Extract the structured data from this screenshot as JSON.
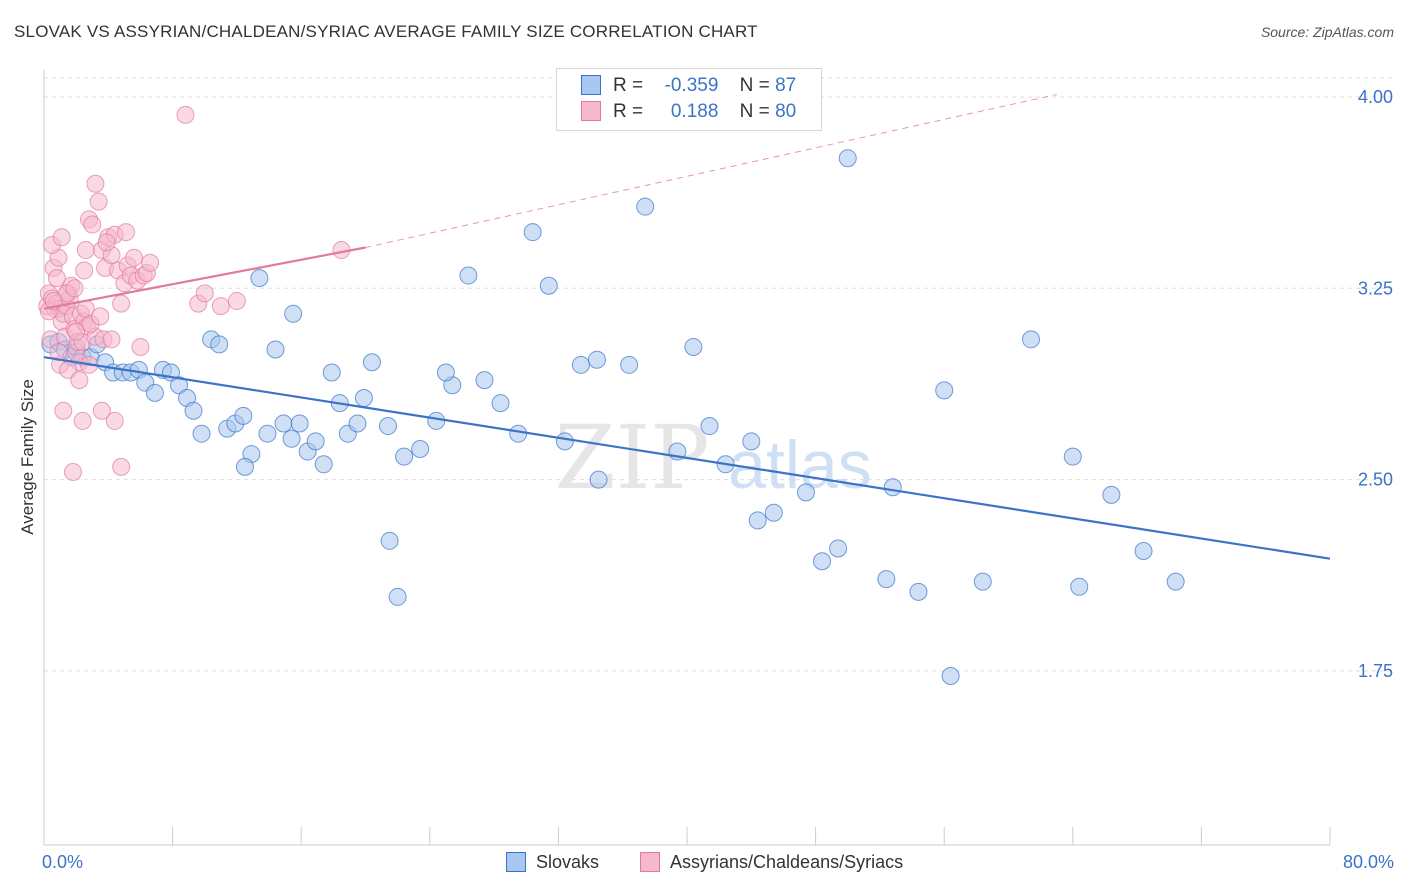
{
  "header": {
    "title": "SLOVAK VS ASSYRIAN/CHALDEAN/SYRIAC AVERAGE FAMILY SIZE CORRELATION CHART",
    "source": "Source: ZipAtlas.com"
  },
  "watermark": {
    "zip": "ZIP",
    "atlas": "atlas"
  },
  "legend": {
    "rows": [
      {
        "r_label": "R =",
        "r_value": "-0.359",
        "n_label": "N =",
        "n_value": "87"
      },
      {
        "r_label": "R =",
        "r_value": "0.188",
        "n_label": "N =",
        "n_value": "80"
      }
    ],
    "bottom": [
      "Slovaks",
      "Assyrians/Chaldeans/Syriacs"
    ]
  },
  "colors": {
    "blue": "#3b73c8",
    "blue_fill": "#a8c6ef",
    "pink": "#e07aa0",
    "pink_fill": "#f6b8cd",
    "grid": "#dddddd",
    "axis_text": "#3b73c8"
  },
  "chart_data": {
    "type": "scatter",
    "title": "SLOVAK VS ASSYRIAN/CHALDEAN/SYRIAC AVERAGE FAMILY SIZE CORRELATION CHART",
    "xlabel": "",
    "ylabel": "Average Family Size",
    "xlim": [
      0,
      80
    ],
    "ylim": [
      1.0,
      4.2
    ],
    "x_tick_labels": [
      "0.0%",
      "80.0%"
    ],
    "y_ticks": [
      1.75,
      2.5,
      3.25,
      4.0
    ],
    "y_tick_labels": [
      "1.75",
      "2.50",
      "3.25",
      "4.00"
    ],
    "grid": "horizontal dashed",
    "legend_position": "top-center",
    "series": [
      {
        "name": "Slovaks",
        "color": "#3b73c8",
        "trend": {
          "x": [
            0.0,
            80.0
          ],
          "y": [
            2.98,
            2.19
          ],
          "style": "solid"
        },
        "points": [
          [
            0.4,
            3.03
          ],
          [
            0.9,
            3.04
          ],
          [
            1.3,
            3.01
          ],
          [
            1.7,
            2.98
          ],
          [
            2.0,
            3.02
          ],
          [
            2.4,
            2.98
          ],
          [
            2.9,
            2.98
          ],
          [
            3.3,
            3.03
          ],
          [
            3.8,
            2.96
          ],
          [
            4.3,
            2.92
          ],
          [
            4.9,
            2.92
          ],
          [
            5.4,
            2.92
          ],
          [
            5.9,
            2.93
          ],
          [
            6.3,
            2.88
          ],
          [
            6.9,
            2.84
          ],
          [
            7.4,
            2.93
          ],
          [
            7.9,
            2.92
          ],
          [
            8.4,
            2.87
          ],
          [
            8.9,
            2.82
          ],
          [
            9.3,
            2.77
          ],
          [
            9.8,
            2.68
          ],
          [
            10.4,
            3.05
          ],
          [
            10.9,
            3.03
          ],
          [
            11.4,
            2.7
          ],
          [
            11.9,
            2.72
          ],
          [
            12.4,
            2.75
          ],
          [
            12.9,
            2.6
          ],
          [
            13.4,
            3.29
          ],
          [
            13.9,
            2.68
          ],
          [
            14.4,
            3.01
          ],
          [
            14.9,
            2.72
          ],
          [
            15.4,
            2.66
          ],
          [
            15.9,
            2.72
          ],
          [
            16.4,
            2.61
          ],
          [
            16.9,
            2.65
          ],
          [
            17.4,
            2.56
          ],
          [
            17.9,
            2.92
          ],
          [
            18.4,
            2.8
          ],
          [
            18.9,
            2.68
          ],
          [
            19.5,
            2.72
          ],
          [
            19.9,
            2.82
          ],
          [
            20.4,
            2.96
          ],
          [
            21.4,
            2.71
          ],
          [
            22.4,
            2.59
          ],
          [
            23.4,
            2.62
          ],
          [
            24.4,
            2.73
          ],
          [
            25.4,
            2.87
          ],
          [
            26.4,
            3.3
          ],
          [
            27.4,
            2.89
          ],
          [
            28.4,
            2.8
          ],
          [
            29.5,
            2.68
          ],
          [
            30.4,
            3.47
          ],
          [
            31.4,
            3.26
          ],
          [
            32.4,
            2.65
          ],
          [
            33.4,
            2.95
          ],
          [
            34.4,
            2.97
          ],
          [
            36.4,
            2.95
          ],
          [
            37.4,
            3.57
          ],
          [
            39.4,
            2.61
          ],
          [
            40.4,
            3.02
          ],
          [
            41.4,
            2.71
          ],
          [
            42.4,
            2.56
          ],
          [
            44.4,
            2.34
          ],
          [
            45.4,
            2.37
          ],
          [
            47.4,
            2.45
          ],
          [
            48.4,
            2.18
          ],
          [
            49.4,
            2.23
          ],
          [
            52.4,
            2.11
          ],
          [
            54.4,
            2.06
          ],
          [
            56.4,
            1.73
          ],
          [
            58.4,
            2.1
          ],
          [
            61.4,
            3.05
          ],
          [
            64.4,
            2.08
          ],
          [
            66.4,
            2.44
          ],
          [
            68.4,
            2.22
          ],
          [
            70.4,
            2.1
          ],
          [
            50.0,
            3.76
          ],
          [
            52.8,
            2.47
          ],
          [
            64.0,
            2.59
          ],
          [
            25.0,
            2.92
          ],
          [
            22.0,
            2.04
          ],
          [
            12.5,
            2.55
          ],
          [
            15.5,
            3.15
          ],
          [
            21.5,
            2.26
          ],
          [
            34.5,
            2.5
          ],
          [
            44.0,
            2.65
          ],
          [
            56.0,
            2.85
          ]
        ]
      },
      {
        "name": "Assyrians/Chaldeans/Syriacs",
        "color": "#e07aa0",
        "trend": {
          "x": [
            0.0,
            20.0
          ],
          "y": [
            3.17,
            3.41
          ],
          "style": "solid"
        },
        "trend_extension": {
          "x": [
            20.0,
            63.0
          ],
          "y": [
            3.41,
            4.01
          ],
          "style": "dashed"
        },
        "points": [
          [
            0.2,
            3.18
          ],
          [
            0.3,
            3.23
          ],
          [
            0.4,
            3.05
          ],
          [
            0.5,
            3.21
          ],
          [
            0.6,
            3.33
          ],
          [
            0.7,
            3.17
          ],
          [
            0.8,
            3.19
          ],
          [
            0.9,
            3.37
          ],
          [
            1.0,
            3.17
          ],
          [
            1.1,
            3.12
          ],
          [
            1.2,
            3.15
          ],
          [
            1.3,
            3.06
          ],
          [
            1.4,
            3.18
          ],
          [
            1.5,
            3.23
          ],
          [
            1.6,
            3.21
          ],
          [
            1.7,
            3.26
          ],
          [
            1.8,
            3.14
          ],
          [
            1.9,
            3.09
          ],
          [
            2.0,
            3.0
          ],
          [
            2.1,
            3.04
          ],
          [
            2.2,
            2.96
          ],
          [
            2.3,
            3.15
          ],
          [
            2.4,
            3.04
          ],
          [
            2.5,
            3.12
          ],
          [
            2.6,
            3.17
          ],
          [
            2.7,
            3.1
          ],
          [
            2.8,
            3.52
          ],
          [
            3.0,
            3.5
          ],
          [
            3.2,
            3.66
          ],
          [
            3.4,
            3.59
          ],
          [
            3.6,
            3.4
          ],
          [
            3.8,
            3.33
          ],
          [
            4.0,
            3.45
          ],
          [
            4.2,
            3.38
          ],
          [
            4.4,
            3.46
          ],
          [
            4.6,
            3.32
          ],
          [
            4.8,
            3.19
          ],
          [
            5.0,
            3.27
          ],
          [
            5.2,
            3.34
          ],
          [
            5.4,
            3.3
          ],
          [
            5.6,
            3.37
          ],
          [
            5.8,
            3.28
          ],
          [
            6.0,
            3.02
          ],
          [
            6.2,
            3.3
          ],
          [
            6.4,
            3.31
          ],
          [
            6.6,
            3.35
          ],
          [
            8.8,
            3.93
          ],
          [
            9.6,
            3.19
          ],
          [
            10.0,
            3.23
          ],
          [
            11.0,
            3.18
          ],
          [
            12.0,
            3.2
          ],
          [
            1.2,
            2.77
          ],
          [
            2.4,
            2.73
          ],
          [
            3.6,
            2.77
          ],
          [
            4.4,
            2.73
          ],
          [
            1.8,
            2.53
          ],
          [
            4.8,
            2.55
          ],
          [
            1.0,
            2.95
          ],
          [
            1.5,
            2.93
          ],
          [
            2.2,
            2.89
          ],
          [
            2.8,
            2.95
          ],
          [
            3.2,
            3.06
          ],
          [
            3.7,
            3.05
          ],
          [
            4.2,
            3.05
          ],
          [
            0.8,
            3.29
          ],
          [
            1.4,
            3.23
          ],
          [
            1.9,
            3.25
          ],
          [
            2.5,
            3.32
          ],
          [
            0.5,
            3.42
          ],
          [
            1.1,
            3.45
          ],
          [
            3.9,
            3.43
          ],
          [
            5.1,
            3.47
          ],
          [
            18.5,
            3.4
          ],
          [
            0.3,
            3.16
          ],
          [
            0.6,
            3.2
          ],
          [
            2.0,
            3.08
          ],
          [
            2.9,
            3.11
          ],
          [
            3.5,
            3.14
          ],
          [
            0.9,
            3.0
          ],
          [
            2.6,
            3.4
          ]
        ]
      }
    ]
  }
}
